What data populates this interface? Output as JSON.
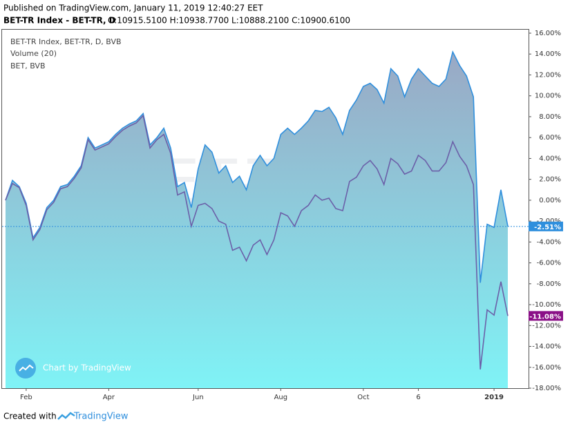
{
  "header": {
    "published": "Published on TradingView.com, January 11, 2019 12:40:27 EET",
    "title": "BET-TR Index - BET-TR, D",
    "ohlc": "O:10915.5100 H:10938.7700 L:10888.2100 C:10900.6100"
  },
  "footer": {
    "created": "Created with",
    "brand": "TradingView"
  },
  "chart_data": {
    "type": "line",
    "legend_extra": "Volume (20)",
    "watermark": [
      "BET-TR, D",
      "BET-TR Index, BET-TR"
    ],
    "badge": "Chart by TradingView",
    "categories": [
      null,
      null,
      null,
      "Feb",
      null,
      null,
      null,
      null,
      null,
      null,
      null,
      null,
      null,
      null,
      null,
      "Apr",
      null,
      null,
      null,
      null,
      null,
      null,
      null,
      null,
      null,
      null,
      null,
      null,
      "Jun",
      null,
      null,
      null,
      null,
      null,
      null,
      null,
      null,
      null,
      null,
      null,
      "Aug",
      null,
      null,
      null,
      null,
      null,
      null,
      null,
      null,
      null,
      null,
      null,
      "Oct",
      null,
      null,
      null,
      null,
      null,
      null,
      null,
      "6",
      null,
      null,
      null,
      null,
      null,
      null,
      null,
      null,
      null,
      null,
      "2019",
      null,
      null
    ],
    "series": [
      {
        "name": "BET-TR Index, BET-TR, D, BVB",
        "color": "#2f8fdd",
        "area": true,
        "last_value_label": "-2.51%",
        "values": [
          0,
          1.9,
          1.3,
          -0.3,
          -3.6,
          -2.6,
          -0.7,
          0,
          1.3,
          1.5,
          2.3,
          3.3,
          6.0,
          5.0,
          5.3,
          5.6,
          6.3,
          6.9,
          7.3,
          7.6,
          8.3,
          5.3,
          6.0,
          6.9,
          5.0,
          1.3,
          1.7,
          -0.7,
          3.0,
          5.3,
          4.6,
          2.6,
          3.3,
          1.7,
          2.3,
          1.0,
          3.3,
          4.3,
          3.3,
          4.0,
          6.3,
          6.9,
          6.3,
          6.9,
          7.6,
          8.6,
          8.5,
          8.9,
          7.9,
          6.3,
          8.6,
          9.6,
          10.9,
          11.2,
          10.6,
          9.3,
          12.6,
          11.9,
          9.9,
          11.6,
          12.6,
          11.9,
          11.2,
          10.9,
          11.6,
          14.2,
          12.9,
          11.9,
          9.9,
          -7.9,
          -2.3,
          -2.6,
          1.0,
          -2.51
        ]
      },
      {
        "name": "BET, BVB",
        "color": "#6b5fa8",
        "area": false,
        "last_value_label": "-11.08%",
        "label_color": "#8a1087",
        "values": [
          0,
          1.6,
          1.2,
          -0.5,
          -3.8,
          -2.8,
          -0.9,
          -0.2,
          1.1,
          1.3,
          2.1,
          3.1,
          5.8,
          4.8,
          5.1,
          5.4,
          6.1,
          6.7,
          7.1,
          7.4,
          8.1,
          5.0,
          5.8,
          6.3,
          4.5,
          0.5,
          0.8,
          -2.5,
          -0.5,
          -0.3,
          -0.8,
          -2.0,
          -2.3,
          -4.8,
          -4.5,
          -5.8,
          -4.3,
          -3.8,
          -5.2,
          -3.8,
          -1.2,
          -1.5,
          -2.5,
          -1.0,
          -0.5,
          0.5,
          0.0,
          0.2,
          -0.8,
          -1.0,
          1.8,
          2.2,
          3.3,
          3.8,
          3.0,
          1.5,
          4.0,
          3.5,
          2.5,
          2.8,
          4.3,
          3.8,
          2.8,
          2.8,
          3.6,
          5.6,
          4.2,
          3.3,
          1.5,
          -16.2,
          -10.5,
          -11.0,
          -7.8,
          -11.08
        ]
      }
    ],
    "ylim": [
      -18,
      16
    ],
    "yticks": [
      {
        "value": 16,
        "label": "16.00%"
      },
      {
        "value": 14,
        "label": "14.00%"
      },
      {
        "value": 12,
        "label": "12.00%"
      },
      {
        "value": 10,
        "label": "10.00%"
      },
      {
        "value": 8,
        "label": "8.00%"
      },
      {
        "value": 6,
        "label": "6.00%"
      },
      {
        "value": 4,
        "label": "4.00%"
      },
      {
        "value": 2,
        "label": "2.00%"
      },
      {
        "value": 0,
        "label": "0.00%"
      },
      {
        "value": -2,
        "label": "-2.00%"
      },
      {
        "value": -4,
        "label": "-4.00%"
      },
      {
        "value": -6,
        "label": "-6.00%"
      },
      {
        "value": -8,
        "label": "-8.00%"
      },
      {
        "value": -10,
        "label": "-10.00%"
      },
      {
        "value": -12,
        "label": "-12.00%"
      },
      {
        "value": -14,
        "label": "-14.00%"
      },
      {
        "value": -16,
        "label": "-16.00%"
      },
      {
        "value": -18,
        "label": "-18.00%"
      }
    ]
  }
}
